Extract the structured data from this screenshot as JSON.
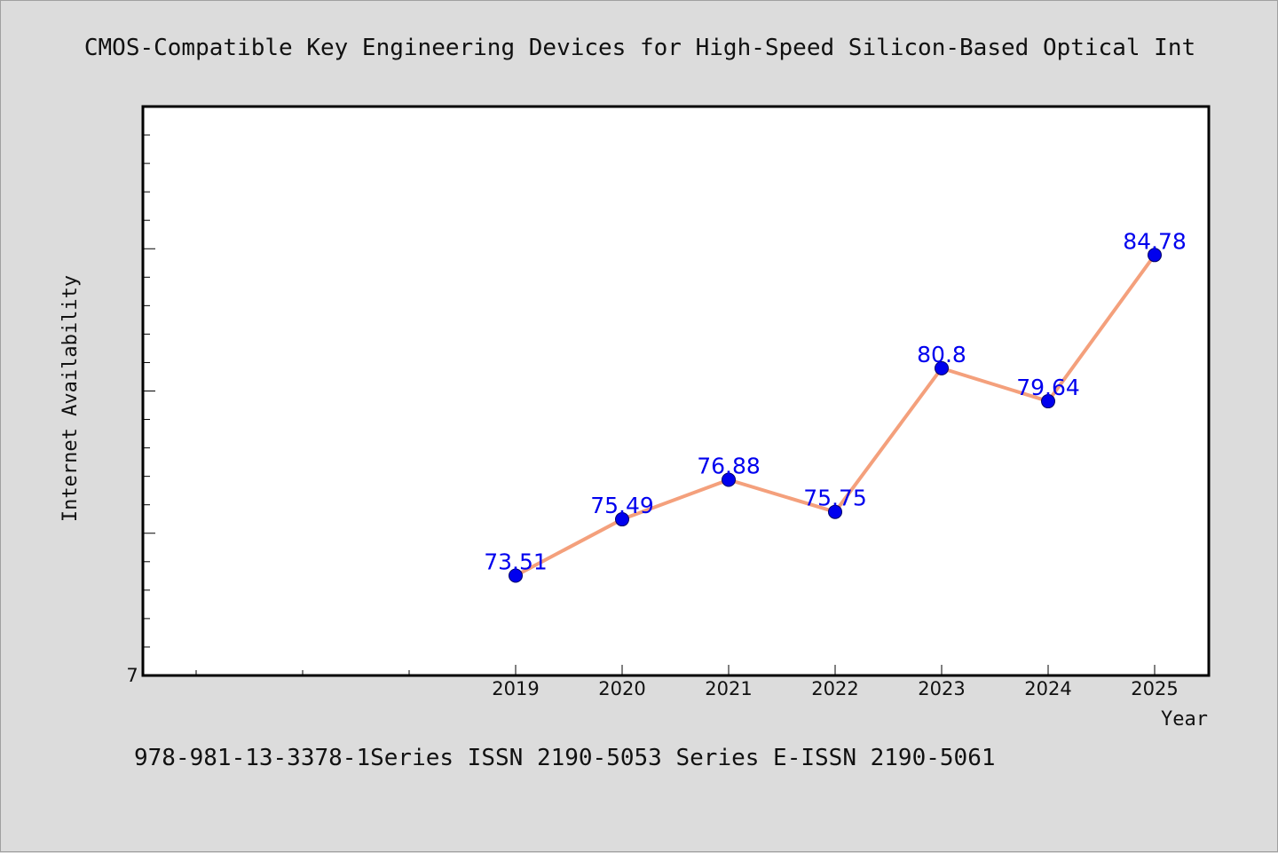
{
  "chart_data": {
    "type": "line",
    "title": "CMOS-Compatible Key Engineering Devices for High-Speed Silicon-Based Optical Int",
    "xlabel": "Year",
    "ylabel": "Internet Availability",
    "categories": [
      "2019",
      "2020",
      "2021",
      "2022",
      "2023",
      "2024",
      "2025"
    ],
    "series": [
      {
        "values": [
          73.51,
          75.49,
          76.88,
          75.75,
          80.8,
          79.64,
          84.78
        ],
        "labels": [
          "73.51",
          "75.49",
          "76.88",
          "75.75",
          "80.8",
          "79.64",
          "84.78"
        ]
      }
    ],
    "y_tick_label": "7",
    "ylim": [
      70,
      90
    ],
    "grid": false,
    "legend": "none",
    "line_color": "#f4a07c",
    "marker_color": "#0000ee",
    "label_color": "#0000ee"
  },
  "footer": "978-981-13-3378-1Series ISSN 2190-5053 Series E-ISSN 2190-5061"
}
